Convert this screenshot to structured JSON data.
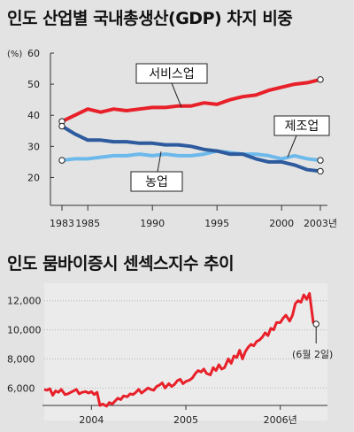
{
  "chart_data": [
    {
      "type": "line",
      "title": "인도 산업별 국내총생산(GDP) 차지 비중",
      "ylabel": "(%)",
      "ylim": [
        15,
        60
      ],
      "yticks": [
        20,
        30,
        40,
        50,
        60
      ],
      "xlim": [
        1983,
        2003
      ],
      "xticks": [
        {
          "value": 1983,
          "label": "1983"
        },
        {
          "value": 1985,
          "label": "1985"
        },
        {
          "value": 1990,
          "label": "1990"
        },
        {
          "value": 1995,
          "label": "1995"
        },
        {
          "value": 2000,
          "label": "2000"
        },
        {
          "value": 2003,
          "label": "2003년"
        }
      ],
      "grid": false,
      "series": [
        {
          "name": "서비스업",
          "color": "#e8202a",
          "x": [
            1983,
            1984,
            1985,
            1986,
            1987,
            1988,
            1989,
            1990,
            1991,
            1992,
            1993,
            1994,
            1995,
            1996,
            1997,
            1998,
            1999,
            2000,
            2001,
            2002,
            2003
          ],
          "values": [
            38,
            40,
            42,
            41,
            42,
            41.5,
            42,
            42.5,
            42.5,
            43,
            43,
            44,
            43.5,
            45,
            46,
            46.5,
            48,
            49,
            50,
            50.5,
            51.5
          ]
        },
        {
          "name": "농업",
          "color": "#2e5b9e",
          "x": [
            1983,
            1984,
            1985,
            1986,
            1987,
            1988,
            1989,
            1990,
            1991,
            1992,
            1993,
            1994,
            1995,
            1996,
            1997,
            1998,
            1999,
            2000,
            2001,
            2002,
            2003
          ],
          "values": [
            36.5,
            34,
            32,
            32,
            31.5,
            31.5,
            31,
            31,
            30.5,
            30.5,
            30,
            29,
            28.5,
            27.5,
            27.5,
            26,
            25,
            25,
            24,
            22.5,
            22
          ]
        },
        {
          "name": "제조업",
          "color": "#6db9ec",
          "x": [
            1983,
            1984,
            1985,
            1986,
            1987,
            1988,
            1989,
            1990,
            1991,
            1992,
            1993,
            1994,
            1995,
            1996,
            1997,
            1998,
            1999,
            2000,
            2001,
            2002,
            2003
          ],
          "values": [
            25.5,
            26,
            26,
            26.5,
            27,
            27,
            27.5,
            27,
            27.5,
            27,
            27,
            27.5,
            28.5,
            28,
            27.5,
            27.5,
            27,
            26,
            27,
            26,
            25.5
          ]
        }
      ]
    },
    {
      "type": "line",
      "title": "인도 뭄바이증시 센섹스지수 추이",
      "ylim": [
        4800,
        13200
      ],
      "yticks": [
        6000,
        8000,
        10000,
        12000
      ],
      "ytick_labels": [
        "6,000",
        "8,000",
        "10,000",
        "12,000"
      ],
      "xlim": [
        2003.5,
        2006.5
      ],
      "xticks": [
        {
          "value": 2004,
          "label": "2004"
        },
        {
          "value": 2005,
          "label": "2005"
        },
        {
          "value": 2006,
          "label": "2006년"
        }
      ],
      "grid": true,
      "annotation": "(6월 2일)",
      "series": [
        {
          "color": "#e8202a",
          "x": [
            2003.5,
            2003.53,
            2003.56,
            2003.59,
            2003.62,
            2003.65,
            2003.68,
            2003.72,
            2003.75,
            2003.78,
            2003.81,
            2003.84,
            2003.87,
            2003.9,
            2003.94,
            2003.97,
            2004.0,
            2004.03,
            2004.06,
            2004.09,
            2004.12,
            2004.16,
            2004.19,
            2004.22,
            2004.25,
            2004.28,
            2004.31,
            2004.34,
            2004.38,
            2004.41,
            2004.44,
            2004.47,
            2004.5,
            2004.53,
            2004.56,
            2004.6,
            2004.63,
            2004.66,
            2004.69,
            2004.72,
            2004.75,
            2004.78,
            2004.82,
            2004.85,
            2004.88,
            2004.91,
            2004.94,
            2004.97,
            2005.0,
            2005.04,
            2005.07,
            2005.1,
            2005.13,
            2005.16,
            2005.19,
            2005.22,
            2005.26,
            2005.29,
            2005.32,
            2005.35,
            2005.38,
            2005.41,
            2005.45,
            2005.48,
            2005.51,
            2005.54,
            2005.57,
            2005.6,
            2005.63,
            2005.66,
            2005.69,
            2005.72,
            2005.75,
            2005.78,
            2005.81,
            2005.84,
            2005.87,
            2005.9,
            2005.93,
            2005.96,
            2006.0,
            2006.03,
            2006.06,
            2006.1,
            2006.13,
            2006.16,
            2006.19,
            2006.22,
            2006.25,
            2006.28,
            2006.31,
            2006.35,
            2006.38
          ],
          "values": [
            5900,
            5850,
            5950,
            5500,
            5800,
            5700,
            5900,
            5550,
            5600,
            5700,
            5800,
            5900,
            5600,
            5700,
            5750,
            5650,
            5750,
            5550,
            5700,
            4800,
            4900,
            4750,
            5000,
            4900,
            5100,
            5300,
            5200,
            5450,
            5400,
            5600,
            5550,
            5700,
            5900,
            5650,
            5800,
            6000,
            5900,
            5850,
            6100,
            6200,
            6350,
            6000,
            6300,
            6100,
            6250,
            6500,
            6600,
            6300,
            6450,
            6550,
            6700,
            7000,
            7200,
            7100,
            7300,
            7000,
            6900,
            7400,
            7200,
            7600,
            7300,
            7400,
            8000,
            7700,
            8200,
            8100,
            8600,
            8000,
            8500,
            8800,
            9000,
            8900,
            9200,
            9300,
            9500,
            9800,
            9600,
            10100,
            10000,
            10500,
            10500,
            10800,
            11000,
            10600,
            11000,
            11800,
            12000,
            11900,
            12400,
            12100,
            12500,
            10500,
            10400
          ]
        }
      ]
    }
  ]
}
